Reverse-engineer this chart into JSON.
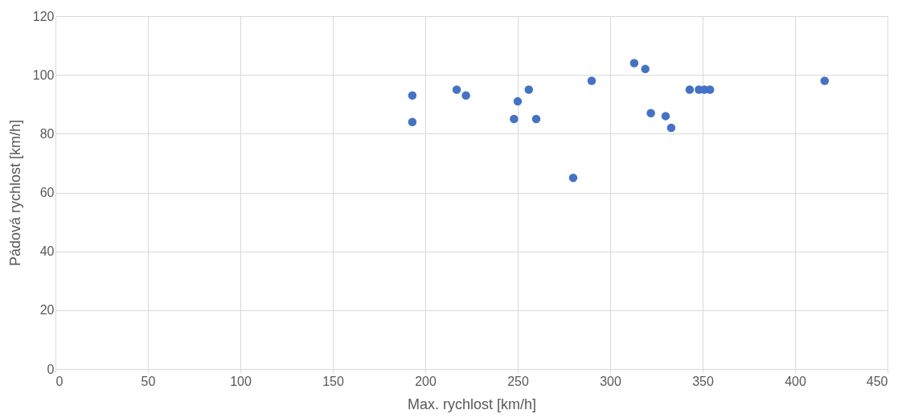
{
  "chart_data": {
    "type": "scatter",
    "xlabel": "Max. rychlost [km/h]",
    "ylabel": "Pádová rychlost [km/h]",
    "x": [
      193,
      193,
      217,
      222,
      248,
      250,
      256,
      260,
      280,
      290,
      313,
      319,
      322,
      330,
      333,
      343,
      348,
      351,
      354,
      416
    ],
    "series": [
      {
        "color": "#4472c4",
        "values": [
          93,
          84,
          95,
          93,
          85,
          91,
          95,
          85,
          65,
          98,
          104,
          102,
          87,
          86,
          82,
          95,
          95,
          95,
          95,
          98
        ]
      }
    ],
    "xlim": [
      0,
      450
    ],
    "xticks": [
      0,
      50,
      100,
      150,
      200,
      250,
      300,
      350,
      400,
      450
    ],
    "ylim": [
      0,
      120
    ],
    "yticks": [
      0,
      20,
      40,
      60,
      80,
      100,
      120
    ],
    "grid": true,
    "marker": "circle"
  }
}
